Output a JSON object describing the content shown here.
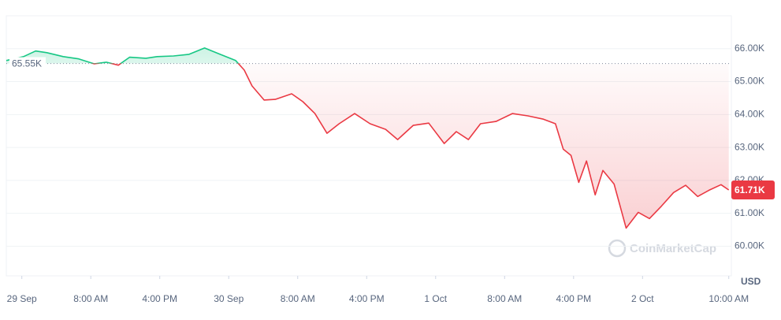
{
  "chart_data": {
    "type": "line",
    "x": [
      -1.8,
      0.2,
      1.6,
      2.9,
      4.8,
      6.6,
      8.4,
      9.8,
      11.2,
      12.5,
      14.4,
      15.7,
      17.6,
      19.4,
      21.2,
      23.0,
      24.8,
      25.8,
      26.7,
      28.1,
      29.4,
      31.3,
      32.6,
      34.0,
      35.4,
      36.8,
      38.6,
      40.4,
      42.2,
      43.6,
      45.4,
      47.2,
      49.0,
      50.4,
      51.8,
      53.2,
      55.0,
      56.9,
      58.7,
      60.5,
      61.9,
      62.8,
      63.7,
      64.6,
      65.5,
      66.5,
      67.4,
      68.7,
      70.1,
      71.5,
      72.8,
      74.2,
      75.6,
      77.0,
      78.4,
      79.7,
      81.1,
      82.0
    ],
    "values": [
      65.64,
      65.76,
      65.93,
      65.88,
      65.76,
      65.69,
      65.54,
      65.59,
      65.5,
      65.74,
      65.71,
      65.76,
      65.78,
      65.83,
      66.02,
      65.83,
      65.64,
      65.35,
      64.87,
      64.44,
      64.46,
      64.63,
      64.39,
      64.03,
      63.43,
      63.72,
      64.03,
      63.72,
      63.55,
      63.24,
      63.67,
      63.74,
      63.12,
      63.48,
      63.24,
      63.72,
      63.79,
      64.03,
      63.96,
      63.86,
      63.72,
      62.95,
      62.76,
      61.94,
      62.59,
      61.56,
      62.3,
      61.89,
      60.55,
      61.03,
      60.84,
      61.22,
      61.63,
      61.85,
      61.51,
      61.7,
      61.87,
      61.71
    ],
    "up_color": "#16c784",
    "down_color": "#ea3943",
    "baseline": {
      "value": 65.55,
      "label": "65.55K"
    },
    "last_price": {
      "value": 61.71,
      "label": "61.71K"
    },
    "xlim": [
      -1.8,
      82.3
    ],
    "xticks": [
      {
        "value": 0,
        "label": "29 Sep"
      },
      {
        "value": 8,
        "label": "8:00 AM"
      },
      {
        "value": 16,
        "label": "4:00 PM"
      },
      {
        "value": 24,
        "label": "30 Sep"
      },
      {
        "value": 32,
        "label": "8:00 AM"
      },
      {
        "value": 40,
        "label": "4:00 PM"
      },
      {
        "value": 48,
        "label": "1 Oct"
      },
      {
        "value": 56,
        "label": "8:00 AM"
      },
      {
        "value": 64,
        "label": "4:00 PM"
      },
      {
        "value": 72,
        "label": "2 Oct"
      },
      {
        "value": 82,
        "label": "10:00 AM"
      }
    ],
    "ylim": [
      59.1,
      67.0
    ],
    "yticks": [
      {
        "value": 60,
        "label": "60.00K"
      },
      {
        "value": 61,
        "label": "61.00K"
      },
      {
        "value": 62,
        "label": "62.00K"
      },
      {
        "value": 63,
        "label": "63.00K"
      },
      {
        "value": 64,
        "label": "64.00K"
      },
      {
        "value": 65,
        "label": "65.00K"
      },
      {
        "value": 66,
        "label": "66.00K"
      }
    ],
    "y_axis_label": "USD",
    "watermark": "CoinMarketCap",
    "grid": true
  }
}
